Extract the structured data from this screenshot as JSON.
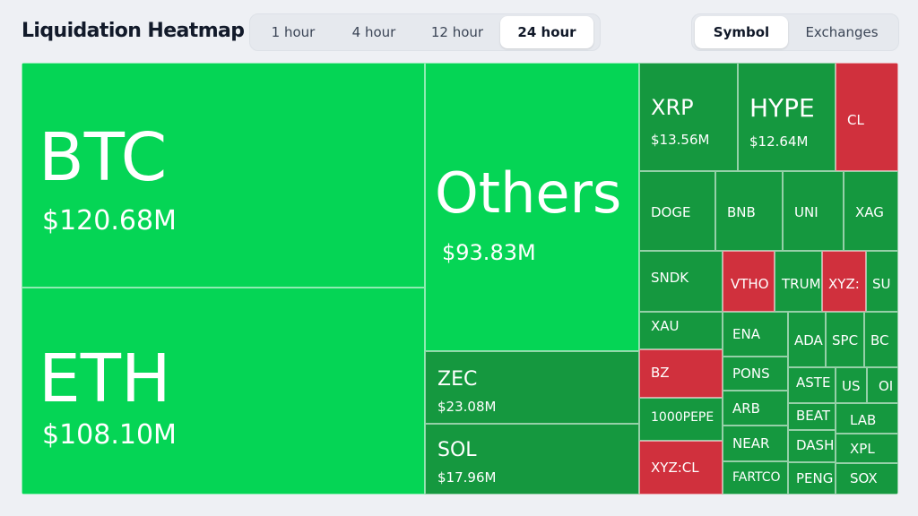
{
  "header": {
    "title": "Liquidation Heatmap",
    "timeframes": [
      "1 hour",
      "4 hour",
      "12 hour",
      "24 hour"
    ],
    "active_timeframe": "24 hour",
    "groupings": [
      "Symbol",
      "Exchanges"
    ],
    "active_grouping": "Symbol"
  },
  "colors": {
    "strong_long": "#05d555",
    "mid_long": "#0fb24b",
    "dark_long": "#15983f",
    "short": "#d0303d"
  },
  "tiles": [
    {
      "symbol": "BTC",
      "value": "$120.68M",
      "tone": "strong_long"
    },
    {
      "symbol": "ETH",
      "value": "$108.10M",
      "tone": "strong_long"
    },
    {
      "symbol": "Others",
      "value": "$93.83M",
      "tone": "strong_long"
    },
    {
      "symbol": "ZEC",
      "value": "$23.08M",
      "tone": "dark_long"
    },
    {
      "symbol": "SOL",
      "value": "$17.96M",
      "tone": "dark_long"
    },
    {
      "symbol": "XRP",
      "value": "$13.56M",
      "tone": "dark_long"
    },
    {
      "symbol": "HYPE",
      "value": "$12.64M",
      "tone": "dark_long"
    },
    {
      "symbol": "CL",
      "tone": "short"
    },
    {
      "symbol": "DOGE",
      "tone": "dark_long"
    },
    {
      "symbol": "BNB",
      "tone": "dark_long"
    },
    {
      "symbol": "UNI",
      "tone": "dark_long"
    },
    {
      "symbol": "XAG",
      "tone": "dark_long"
    },
    {
      "symbol": "SNDK",
      "tone": "dark_long"
    },
    {
      "symbol": "VTHO",
      "tone": "short"
    },
    {
      "symbol": "TRUM",
      "tone": "dark_long"
    },
    {
      "symbol": "XYZ:",
      "tone": "short"
    },
    {
      "symbol": "SU",
      "tone": "dark_long"
    },
    {
      "symbol": "XAU",
      "tone": "dark_long"
    },
    {
      "symbol": "ENA",
      "tone": "dark_long"
    },
    {
      "symbol": "ADA",
      "tone": "dark_long"
    },
    {
      "symbol": "SPC",
      "tone": "dark_long"
    },
    {
      "symbol": "BC",
      "tone": "dark_long"
    },
    {
      "symbol": "BZ",
      "tone": "short"
    },
    {
      "symbol": "PONS",
      "tone": "dark_long"
    },
    {
      "symbol": "ASTE",
      "tone": "dark_long"
    },
    {
      "symbol": "US",
      "tone": "dark_long"
    },
    {
      "symbol": "OI",
      "tone": "dark_long"
    },
    {
      "symbol": "1000PEPE",
      "tone": "dark_long"
    },
    {
      "symbol": "ARB",
      "tone": "dark_long"
    },
    {
      "symbol": "BEAT",
      "tone": "dark_long"
    },
    {
      "symbol": "LAB",
      "tone": "dark_long"
    },
    {
      "symbol": "XYZ:CL",
      "tone": "short"
    },
    {
      "symbol": "NEAR",
      "tone": "dark_long"
    },
    {
      "symbol": "DASH",
      "tone": "dark_long"
    },
    {
      "symbol": "XPL",
      "tone": "dark_long"
    },
    {
      "symbol": "FARTCO",
      "tone": "dark_long"
    },
    {
      "symbol": "PENG",
      "tone": "dark_long"
    },
    {
      "symbol": "SOX",
      "tone": "dark_long"
    }
  ]
}
